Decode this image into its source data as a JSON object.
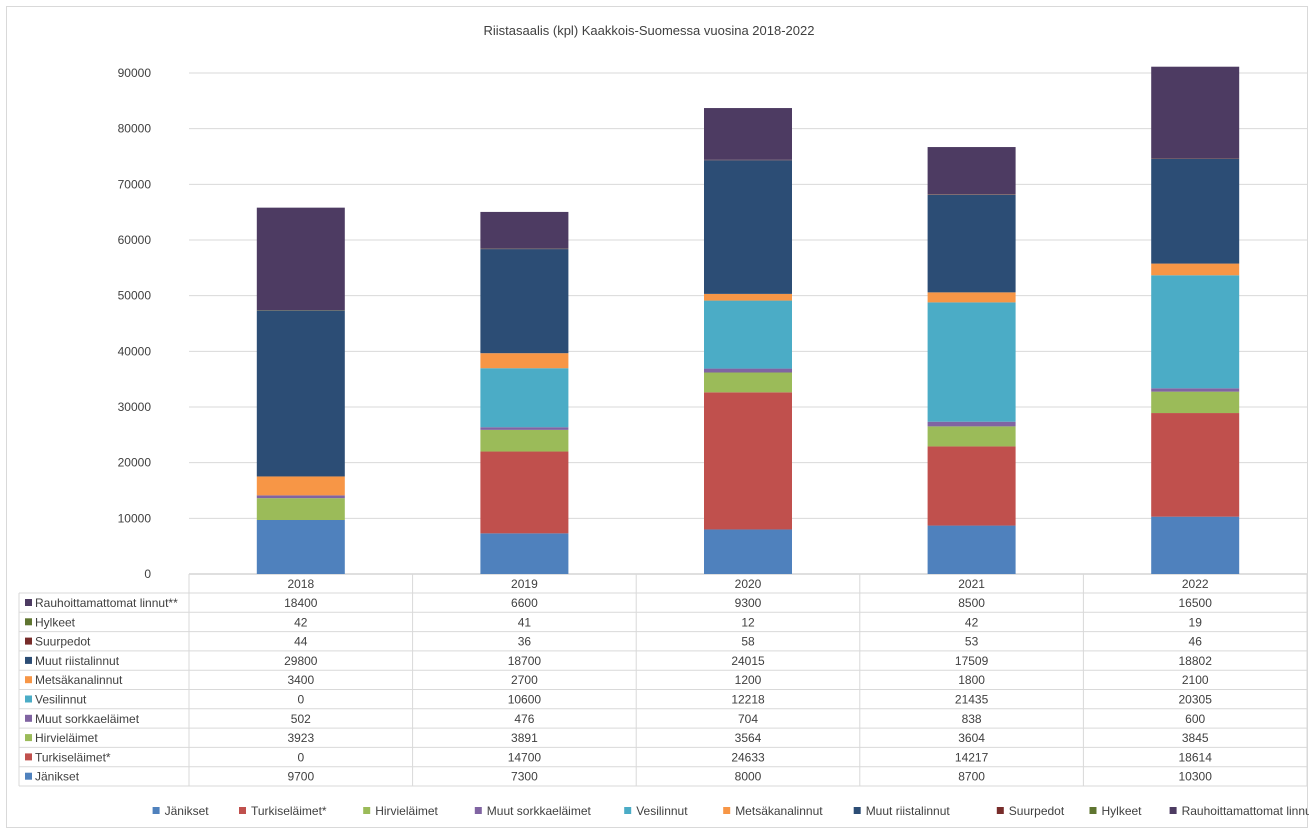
{
  "chart_data": {
    "type": "bar",
    "stacked": true,
    "title": "Riistasaalis (kpl) Kaakkois-Suomessa vuosina 2018-2022",
    "categories": [
      "2018",
      "2019",
      "2020",
      "2021",
      "2022"
    ],
    "ylim": [
      0,
      90000
    ],
    "yticks": [
      0,
      10000,
      20000,
      30000,
      40000,
      50000,
      60000,
      70000,
      80000,
      90000
    ],
    "grid": true,
    "data_table": true,
    "legend_position": "bottom",
    "series": [
      {
        "name": "Jänikset",
        "color": "#4f81bd",
        "values": [
          9700,
          7300,
          8000,
          8700,
          10300
        ]
      },
      {
        "name": "Turkiseläimet*",
        "color": "#c0504d",
        "values": [
          0,
          14700,
          24633,
          14217,
          18614
        ]
      },
      {
        "name": "Hirvieläimet",
        "color": "#9bbb59",
        "values": [
          3923,
          3891,
          3564,
          3604,
          3845
        ]
      },
      {
        "name": "Muut sorkkaeläimet",
        "color": "#8064a2",
        "values": [
          502,
          476,
          704,
          838,
          600
        ]
      },
      {
        "name": "Vesilinnut",
        "color": "#4bacc6",
        "values": [
          0,
          10600,
          12218,
          21435,
          20305
        ]
      },
      {
        "name": "Metsäkanalinnut",
        "color": "#f79646",
        "values": [
          3400,
          2700,
          1200,
          1800,
          2100
        ]
      },
      {
        "name": "Muut riistalinnut",
        "color": "#2c4d75",
        "values": [
          29800,
          18700,
          24015,
          17509,
          18802
        ]
      },
      {
        "name": "Suurpedot",
        "color": "#772c2a",
        "values": [
          44,
          36,
          58,
          53,
          46
        ]
      },
      {
        "name": "Hylkeet",
        "color": "#5f7530",
        "values": [
          42,
          41,
          12,
          42,
          19
        ]
      },
      {
        "name": "Rauhoittamattomat linnut**",
        "color": "#4d3b62",
        "values": [
          18400,
          6600,
          9300,
          8500,
          16500
        ]
      }
    ]
  }
}
